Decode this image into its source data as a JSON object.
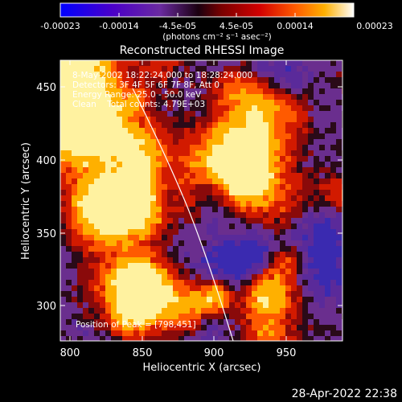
{
  "colorbar": {
    "ticks": [
      "-0.00023",
      "-0.00014",
      "-4.5e-05",
      "4.5e-05",
      "0.00014",
      "0.00023"
    ],
    "unit_label": "(photons cm⁻² s⁻¹ asec⁻²)",
    "colors": [
      "#0000ff",
      "#4b00c8",
      "#6a2aa0",
      "#000000",
      "#7a0000",
      "#d20000",
      "#ff5a00",
      "#ffb000",
      "#ffffff"
    ]
  },
  "plot": {
    "title": "Reconstructed RHESSI Image",
    "xlabel": "Heliocentric X (arcsec)",
    "ylabel": "Heliocentric Y (arcsec)",
    "xticks": [
      "800",
      "850",
      "900",
      "950"
    ],
    "yticks": [
      "300",
      "350",
      "400",
      "450"
    ],
    "info_lines": [
      "8-May-2002 18:22:24.000 to 18:28:24.000",
      "Detectors: 3F 4F 5F 6F 7F 8F, Att 0",
      "Energy Range: 25.0 - 50.0 keV",
      "Clean    Total counts: 4.79E+03"
    ],
    "peak_label": "Position of Peak = [798,451]",
    "xrange": [
      780,
      985
    ],
    "yrange": [
      275,
      475
    ],
    "limb_curve_color": "#ffffff"
  },
  "footer": {
    "timestamp": "28-Apr-2022 22:38"
  }
}
